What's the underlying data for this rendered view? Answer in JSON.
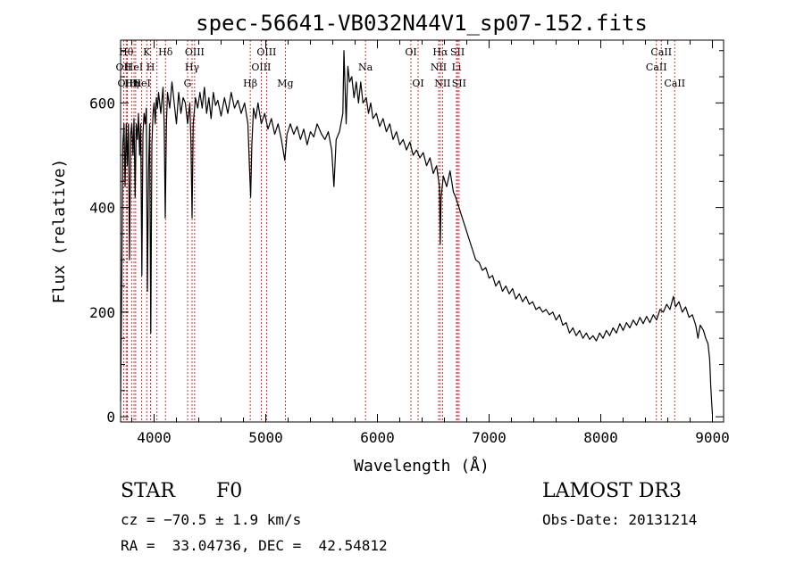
{
  "chart_data": {
    "type": "line",
    "title": "spec-56641-VB032N44V1_sp07-152.fits",
    "xlabel": "Wavelength (Å)",
    "ylabel": "Flux (relative)",
    "xlim": [
      3700,
      9100
    ],
    "ylim": [
      -10,
      720
    ],
    "xticks": [
      4000,
      5000,
      6000,
      7000,
      8000,
      9000
    ],
    "yticks": [
      0,
      200,
      400,
      600
    ],
    "grid": false,
    "line_color": "#000000",
    "marker_color": "#cc0000",
    "series": [
      {
        "name": "flux",
        "points": [
          [
            3700,
            30
          ],
          [
            3710,
            260
          ],
          [
            3720,
            520
          ],
          [
            3730,
            560
          ],
          [
            3740,
            440
          ],
          [
            3750,
            560
          ],
          [
            3760,
            480
          ],
          [
            3770,
            560
          ],
          [
            3780,
            300
          ],
          [
            3790,
            540
          ],
          [
            3800,
            560
          ],
          [
            3810,
            500
          ],
          [
            3820,
            570
          ],
          [
            3830,
            420
          ],
          [
            3840,
            560
          ],
          [
            3850,
            530
          ],
          [
            3860,
            580
          ],
          [
            3870,
            500
          ],
          [
            3880,
            560
          ],
          [
            3890,
            270
          ],
          [
            3900,
            540
          ],
          [
            3910,
            580
          ],
          [
            3920,
            560
          ],
          [
            3930,
            590
          ],
          [
            3940,
            240
          ],
          [
            3950,
            470
          ],
          [
            3960,
            560
          ],
          [
            3970,
            160
          ],
          [
            3980,
            520
          ],
          [
            3990,
            580
          ],
          [
            4000,
            600
          ],
          [
            4010,
            560
          ],
          [
            4020,
            610
          ],
          [
            4030,
            590
          ],
          [
            4040,
            620
          ],
          [
            4060,
            580
          ],
          [
            4080,
            630
          ],
          [
            4090,
            560
          ],
          [
            4100,
            380
          ],
          [
            4110,
            560
          ],
          [
            4120,
            620
          ],
          [
            4140,
            590
          ],
          [
            4160,
            640
          ],
          [
            4180,
            600
          ],
          [
            4200,
            560
          ],
          [
            4220,
            620
          ],
          [
            4240,
            580
          ],
          [
            4260,
            610
          ],
          [
            4280,
            600
          ],
          [
            4300,
            560
          ],
          [
            4320,
            600
          ],
          [
            4330,
            520
          ],
          [
            4340,
            380
          ],
          [
            4350,
            560
          ],
          [
            4370,
            610
          ],
          [
            4390,
            590
          ],
          [
            4410,
            620
          ],
          [
            4430,
            590
          ],
          [
            4450,
            630
          ],
          [
            4470,
            580
          ],
          [
            4490,
            610
          ],
          [
            4510,
            570
          ],
          [
            4530,
            620
          ],
          [
            4550,
            595
          ],
          [
            4570,
            605
          ],
          [
            4600,
            575
          ],
          [
            4630,
            610
          ],
          [
            4660,
            580
          ],
          [
            4690,
            620
          ],
          [
            4720,
            590
          ],
          [
            4750,
            605
          ],
          [
            4780,
            580
          ],
          [
            4810,
            600
          ],
          [
            4840,
            560
          ],
          [
            4855,
            470
          ],
          [
            4865,
            420
          ],
          [
            4875,
            520
          ],
          [
            4890,
            590
          ],
          [
            4910,
            570
          ],
          [
            4930,
            600
          ],
          [
            4960,
            560
          ],
          [
            4990,
            580
          ],
          [
            5020,
            550
          ],
          [
            5050,
            570
          ],
          [
            5080,
            540
          ],
          [
            5110,
            560
          ],
          [
            5140,
            530
          ],
          [
            5170,
            490
          ],
          [
            5190,
            540
          ],
          [
            5220,
            560
          ],
          [
            5250,
            540
          ],
          [
            5280,
            555
          ],
          [
            5310,
            530
          ],
          [
            5340,
            550
          ],
          [
            5370,
            520
          ],
          [
            5400,
            545
          ],
          [
            5430,
            535
          ],
          [
            5460,
            560
          ],
          [
            5500,
            540
          ],
          [
            5530,
            530
          ],
          [
            5560,
            545
          ],
          [
            5590,
            510
          ],
          [
            5610,
            440
          ],
          [
            5630,
            530
          ],
          [
            5660,
            545
          ],
          [
            5690,
            580
          ],
          [
            5700,
            700
          ],
          [
            5710,
            630
          ],
          [
            5720,
            560
          ],
          [
            5735,
            670
          ],
          [
            5750,
            640
          ],
          [
            5770,
            650
          ],
          [
            5790,
            610
          ],
          [
            5810,
            640
          ],
          [
            5830,
            600
          ],
          [
            5850,
            640
          ],
          [
            5870,
            600
          ],
          [
            5900,
            610
          ],
          [
            5920,
            580
          ],
          [
            5940,
            600
          ],
          [
            5960,
            570
          ],
          [
            5990,
            580
          ],
          [
            6020,
            555
          ],
          [
            6050,
            570
          ],
          [
            6080,
            545
          ],
          [
            6110,
            560
          ],
          [
            6140,
            530
          ],
          [
            6170,
            545
          ],
          [
            6200,
            520
          ],
          [
            6230,
            530
          ],
          [
            6260,
            510
          ],
          [
            6290,
            525
          ],
          [
            6320,
            500
          ],
          [
            6350,
            510
          ],
          [
            6380,
            495
          ],
          [
            6410,
            505
          ],
          [
            6440,
            480
          ],
          [
            6470,
            495
          ],
          [
            6500,
            465
          ],
          [
            6530,
            480
          ],
          [
            6555,
            440
          ],
          [
            6562,
            330
          ],
          [
            6570,
            420
          ],
          [
            6590,
            460
          ],
          [
            6620,
            440
          ],
          [
            6650,
            470
          ],
          [
            6680,
            430
          ],
          [
            6700,
            420
          ],
          [
            6730,
            400
          ],
          [
            6760,
            380
          ],
          [
            6790,
            360
          ],
          [
            6820,
            340
          ],
          [
            6850,
            320
          ],
          [
            6880,
            300
          ],
          [
            6910,
            295
          ],
          [
            6940,
            280
          ],
          [
            6970,
            285
          ],
          [
            7000,
            265
          ],
          [
            7030,
            270
          ],
          [
            7060,
            250
          ],
          [
            7090,
            260
          ],
          [
            7120,
            240
          ],
          [
            7150,
            250
          ],
          [
            7180,
            235
          ],
          [
            7210,
            245
          ],
          [
            7240,
            225
          ],
          [
            7270,
            235
          ],
          [
            7300,
            220
          ],
          [
            7330,
            230
          ],
          [
            7360,
            215
          ],
          [
            7390,
            220
          ],
          [
            7420,
            205
          ],
          [
            7450,
            210
          ],
          [
            7480,
            200
          ],
          [
            7510,
            205
          ],
          [
            7540,
            195
          ],
          [
            7570,
            200
          ],
          [
            7600,
            185
          ],
          [
            7630,
            195
          ],
          [
            7660,
            175
          ],
          [
            7690,
            180
          ],
          [
            7720,
            160
          ],
          [
            7750,
            170
          ],
          [
            7780,
            155
          ],
          [
            7810,
            165
          ],
          [
            7840,
            150
          ],
          [
            7870,
            160
          ],
          [
            7900,
            148
          ],
          [
            7930,
            155
          ],
          [
            7960,
            145
          ],
          [
            7990,
            160
          ],
          [
            8020,
            150
          ],
          [
            8050,
            165
          ],
          [
            8080,
            155
          ],
          [
            8110,
            170
          ],
          [
            8140,
            160
          ],
          [
            8170,
            178
          ],
          [
            8200,
            165
          ],
          [
            8230,
            180
          ],
          [
            8260,
            170
          ],
          [
            8290,
            185
          ],
          [
            8320,
            175
          ],
          [
            8350,
            190
          ],
          [
            8380,
            178
          ],
          [
            8410,
            192
          ],
          [
            8440,
            180
          ],
          [
            8470,
            195
          ],
          [
            8500,
            185
          ],
          [
            8530,
            205
          ],
          [
            8560,
            200
          ],
          [
            8590,
            215
          ],
          [
            8620,
            205
          ],
          [
            8650,
            230
          ],
          [
            8670,
            210
          ],
          [
            8700,
            220
          ],
          [
            8730,
            200
          ],
          [
            8760,
            210
          ],
          [
            8790,
            190
          ],
          [
            8820,
            195
          ],
          [
            8850,
            175
          ],
          [
            8870,
            150
          ],
          [
            8890,
            175
          ],
          [
            8920,
            165
          ],
          [
            8940,
            150
          ],
          [
            8960,
            140
          ],
          [
            8975,
            110
          ],
          [
            8985,
            60
          ],
          [
            8995,
            20
          ],
          [
            9000,
            5
          ]
        ]
      }
    ],
    "line_markers": [
      {
        "wavelength": 3727,
        "label": "OII",
        "row": 2
      },
      {
        "wavelength": 3750,
        "label": "Hθ",
        "row": 1
      },
      {
        "wavelength": 3760,
        "label": "OIII",
        "row": 3
      },
      {
        "wavelength": 3798,
        "label": "Hη",
        "row": 3
      },
      {
        "wavelength": 3820,
        "label": "HeI",
        "row": 2
      },
      {
        "wavelength": 3835,
        "label": "Hι",
        "row": 3
      },
      {
        "wavelength": 3889,
        "label": "HeI",
        "row": 3
      },
      {
        "wavelength": 3934,
        "label": "K",
        "row": 1
      },
      {
        "wavelength": 3968,
        "label": "H",
        "row": 2
      },
      {
        "wavelength": 4026,
        "label": "",
        "row": 0
      },
      {
        "wavelength": 4102,
        "label": "Hδ",
        "row": 1
      },
      {
        "wavelength": 4300,
        "label": "G",
        "row": 3
      },
      {
        "wavelength": 4340,
        "label": "Hγ",
        "row": 2
      },
      {
        "wavelength": 4363,
        "label": "OIII",
        "row": 1
      },
      {
        "wavelength": 4861,
        "label": "Hβ",
        "row": 3
      },
      {
        "wavelength": 4959,
        "label": "OIII",
        "row": 2
      },
      {
        "wavelength": 5007,
        "label": "OIII",
        "row": 1
      },
      {
        "wavelength": 5175,
        "label": "Mg",
        "row": 3
      },
      {
        "wavelength": 5893,
        "label": "Na",
        "row": 2
      },
      {
        "wavelength": 6300,
        "label": "OI",
        "row": 1
      },
      {
        "wavelength": 6364,
        "label": "OI",
        "row": 3
      },
      {
        "wavelength": 6548,
        "label": "NII",
        "row": 2
      },
      {
        "wavelength": 6563,
        "label": "Hα",
        "row": 1
      },
      {
        "wavelength": 6583,
        "label": "NII",
        "row": 3
      },
      {
        "wavelength": 6708,
        "label": "Li",
        "row": 2
      },
      {
        "wavelength": 6717,
        "label": "SII",
        "row": 1
      },
      {
        "wavelength": 6731,
        "label": "SII",
        "row": 3
      },
      {
        "wavelength": 8498,
        "label": "CaII",
        "row": 2
      },
      {
        "wavelength": 8542,
        "label": "CaII",
        "row": 1
      },
      {
        "wavelength": 8662,
        "label": "CaII",
        "row": 3
      }
    ]
  },
  "info": {
    "class_label": "STAR",
    "subclass": "F0",
    "survey": "LAMOST DR3",
    "redshift": "cz = −70.5 ± 1.9 km/s",
    "obs_date": "Obs-Date: 20131214",
    "coords": "RA =  33.04736, DEC =  42.54812"
  }
}
